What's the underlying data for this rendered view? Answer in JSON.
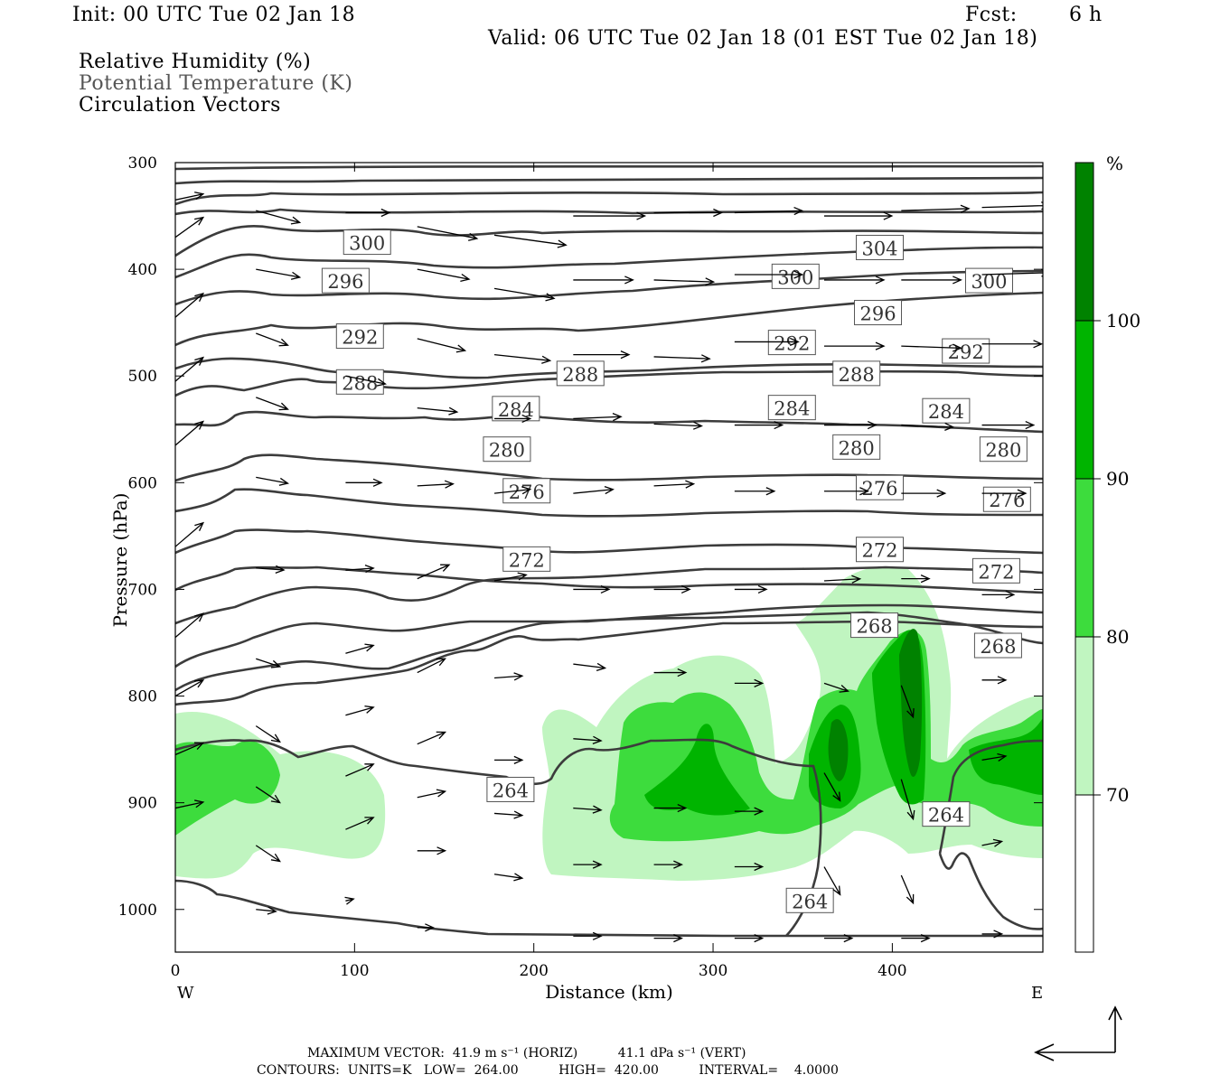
{
  "header": {
    "init": "Init: 00 UTC Tue 02 Jan 18",
    "fcst_label": "Fcst:",
    "fcst_value": "6 h",
    "valid": "Valid: 06 UTC Tue 02 Jan 18 (01 EST Tue 02 Jan 18)"
  },
  "legend": {
    "line1": "Relative Humidity (%)",
    "line2": "Potential Temperature (K)",
    "line3": "Circulation Vectors"
  },
  "chart_data": {
    "type": "contour",
    "xlabel": "Distance (km)",
    "ylabel": "Pressure (hPa)",
    "xlim": [
      0,
      484
    ],
    "ylim": [
      1040,
      300
    ],
    "x_ticks": [
      "0",
      "100",
      "200",
      "300",
      "400"
    ],
    "x_tick_values": [
      0,
      100,
      200,
      300,
      400
    ],
    "y_ticks": [
      "300",
      "400",
      "500",
      "600",
      "700",
      "800",
      "900",
      "1000"
    ],
    "y_tick_values": [
      300,
      400,
      500,
      600,
      700,
      800,
      900,
      1000
    ],
    "west_label": "W",
    "east_label": "E",
    "colorbar": {
      "unit": "%",
      "levels": [
        "70",
        "80",
        "90",
        "100"
      ],
      "colors": [
        "#ffffff",
        "#c0f5c0",
        "#3ddc3d",
        "#00b400",
        "#008200"
      ]
    },
    "theta_contours": [
      {
        "label": "264",
        "value": 264
      },
      {
        "label": "268",
        "value": 268
      },
      {
        "label": "272",
        "value": 272
      },
      {
        "label": "276",
        "value": 276
      },
      {
        "label": "280",
        "value": 280
      },
      {
        "label": "284",
        "value": 284
      },
      {
        "label": "288",
        "value": 288
      },
      {
        "label": "292",
        "value": 292
      },
      {
        "label": "296",
        "value": 296
      },
      {
        "label": "300",
        "value": 300
      },
      {
        "label": "304",
        "value": 304
      }
    ],
    "contour_labels": [
      {
        "text": "300",
        "x": 107,
        "y": 375
      },
      {
        "text": "304",
        "x": 393,
        "y": 380
      },
      {
        "text": "296",
        "x": 95,
        "y": 411
      },
      {
        "text": "300",
        "x": 346,
        "y": 407
      },
      {
        "text": "300",
        "x": 454,
        "y": 411
      },
      {
        "text": "296",
        "x": 392,
        "y": 441
      },
      {
        "text": "292",
        "x": 103,
        "y": 463
      },
      {
        "text": "292",
        "x": 344,
        "y": 469
      },
      {
        "text": "292",
        "x": 441,
        "y": 477
      },
      {
        "text": "288",
        "x": 103,
        "y": 506
      },
      {
        "text": "288",
        "x": 226,
        "y": 498
      },
      {
        "text": "288",
        "x": 380,
        "y": 498
      },
      {
        "text": "284",
        "x": 190,
        "y": 531
      },
      {
        "text": "284",
        "x": 344,
        "y": 530
      },
      {
        "text": "284",
        "x": 430,
        "y": 533
      },
      {
        "text": "280",
        "x": 185,
        "y": 569
      },
      {
        "text": "280",
        "x": 380,
        "y": 567
      },
      {
        "text": "280",
        "x": 462,
        "y": 569
      },
      {
        "text": "276",
        "x": 196,
        "y": 608
      },
      {
        "text": "276",
        "x": 393,
        "y": 605
      },
      {
        "text": "276",
        "x": 464,
        "y": 616
      },
      {
        "text": "272",
        "x": 196,
        "y": 672
      },
      {
        "text": "272",
        "x": 393,
        "y": 663
      },
      {
        "text": "272",
        "x": 458,
        "y": 683
      },
      {
        "text": "268",
        "x": 390,
        "y": 734
      },
      {
        "text": "268",
        "x": 459,
        "y": 753
      },
      {
        "text": "264",
        "x": 187,
        "y": 888
      },
      {
        "text": "264",
        "x": 430,
        "y": 911
      },
      {
        "text": "264",
        "x": 354,
        "y": 992
      }
    ],
    "circulation_vectors": [
      {
        "x": 0,
        "p": 335,
        "u": 14,
        "w": -3
      },
      {
        "x": 0,
        "p": 370,
        "u": 14,
        "w": -10
      },
      {
        "x": 0,
        "p": 445,
        "u": 14,
        "w": -12
      },
      {
        "x": 0,
        "p": 505,
        "u": 14,
        "w": -12
      },
      {
        "x": 0,
        "p": 565,
        "u": 14,
        "w": -12
      },
      {
        "x": 0,
        "p": 660,
        "u": 14,
        "w": -12
      },
      {
        "x": 0,
        "p": 745,
        "u": 14,
        "w": -12
      },
      {
        "x": 0,
        "p": 800,
        "u": 14,
        "w": -8
      },
      {
        "x": 0,
        "p": 855,
        "u": 14,
        "w": -6
      },
      {
        "x": 0,
        "p": 905,
        "u": 14,
        "w": -3
      },
      {
        "x": 45,
        "p": 345,
        "u": 22,
        "w": 6
      },
      {
        "x": 45,
        "p": 400,
        "u": 22,
        "w": 4
      },
      {
        "x": 45,
        "p": 460,
        "u": 16,
        "w": 6
      },
      {
        "x": 45,
        "p": 520,
        "u": 16,
        "w": 6
      },
      {
        "x": 45,
        "p": 595,
        "u": 16,
        "w": 3
      },
      {
        "x": 45,
        "p": 680,
        "u": 14,
        "w": 1
      },
      {
        "x": 45,
        "p": 765,
        "u": 12,
        "w": 4
      },
      {
        "x": 45,
        "p": 828,
        "u": 12,
        "w": 8
      },
      {
        "x": 45,
        "p": 885,
        "u": 12,
        "w": 8
      },
      {
        "x": 45,
        "p": 940,
        "u": 12,
        "w": 8
      },
      {
        "x": 45,
        "p": 1000,
        "u": 10,
        "w": 1
      },
      {
        "x": 95,
        "p": 347,
        "u": 22,
        "w": 0
      },
      {
        "x": 95,
        "p": 500,
        "u": 20,
        "w": 4
      },
      {
        "x": 95,
        "p": 600,
        "u": 18,
        "w": 0
      },
      {
        "x": 95,
        "p": 682,
        "u": 14,
        "w": -1
      },
      {
        "x": 95,
        "p": 760,
        "u": 14,
        "w": -4
      },
      {
        "x": 95,
        "p": 818,
        "u": 14,
        "w": -4
      },
      {
        "x": 95,
        "p": 875,
        "u": 14,
        "w": -6
      },
      {
        "x": 95,
        "p": 925,
        "u": 14,
        "w": -6
      },
      {
        "x": 95,
        "p": 992,
        "u": 4,
        "w": -1
      },
      {
        "x": 135,
        "p": 360,
        "u": 30,
        "w": 6
      },
      {
        "x": 135,
        "p": 400,
        "u": 26,
        "w": 5
      },
      {
        "x": 135,
        "p": 465,
        "u": 24,
        "w": 6
      },
      {
        "x": 135,
        "p": 530,
        "u": 20,
        "w": 2
      },
      {
        "x": 135,
        "p": 603,
        "u": 18,
        "w": -1
      },
      {
        "x": 135,
        "p": 690,
        "u": 16,
        "w": -7
      },
      {
        "x": 135,
        "p": 778,
        "u": 14,
        "w": -7
      },
      {
        "x": 135,
        "p": 845,
        "u": 14,
        "w": -6
      },
      {
        "x": 135,
        "p": 895,
        "u": 14,
        "w": -3
      },
      {
        "x": 135,
        "p": 945,
        "u": 14,
        "w": 0
      },
      {
        "x": 135,
        "p": 1017,
        "u": 8,
        "w": 0
      },
      {
        "x": 178,
        "p": 368,
        "u": 36,
        "w": 5
      },
      {
        "x": 178,
        "p": 418,
        "u": 30,
        "w": 5
      },
      {
        "x": 178,
        "p": 480,
        "u": 28,
        "w": 3
      },
      {
        "x": 178,
        "p": 540,
        "u": 18,
        "w": 0
      },
      {
        "x": 178,
        "p": 610,
        "u": 18,
        "w": -2
      },
      {
        "x": 178,
        "p": 692,
        "u": 16,
        "w": -3
      },
      {
        "x": 178,
        "p": 783,
        "u": 14,
        "w": -1
      },
      {
        "x": 178,
        "p": 860,
        "u": 14,
        "w": 0
      },
      {
        "x": 178,
        "p": 910,
        "u": 14,
        "w": 1
      },
      {
        "x": 178,
        "p": 967,
        "u": 14,
        "w": 2
      },
      {
        "x": 222,
        "p": 350,
        "u": 36,
        "w": 0
      },
      {
        "x": 222,
        "p": 410,
        "u": 30,
        "w": 0
      },
      {
        "x": 222,
        "p": 480,
        "u": 28,
        "w": 0
      },
      {
        "x": 222,
        "p": 540,
        "u": 24,
        "w": -1
      },
      {
        "x": 222,
        "p": 610,
        "u": 20,
        "w": -2
      },
      {
        "x": 222,
        "p": 700,
        "u": 18,
        "w": 0
      },
      {
        "x": 222,
        "p": 770,
        "u": 16,
        "w": 2
      },
      {
        "x": 222,
        "p": 840,
        "u": 14,
        "w": 1
      },
      {
        "x": 222,
        "p": 905,
        "u": 14,
        "w": 1
      },
      {
        "x": 222,
        "p": 958,
        "u": 14,
        "w": 0
      },
      {
        "x": 222,
        "p": 1025,
        "u": 14,
        "w": 0
      },
      {
        "x": 267,
        "p": 347,
        "u": 34,
        "w": 0
      },
      {
        "x": 267,
        "p": 410,
        "u": 30,
        "w": 1
      },
      {
        "x": 267,
        "p": 482,
        "u": 28,
        "w": 1
      },
      {
        "x": 267,
        "p": 545,
        "u": 24,
        "w": 1
      },
      {
        "x": 267,
        "p": 603,
        "u": 20,
        "w": -1
      },
      {
        "x": 267,
        "p": 700,
        "u": 18,
        "w": 0
      },
      {
        "x": 267,
        "p": 778,
        "u": 16,
        "w": 0
      },
      {
        "x": 267,
        "p": 905,
        "u": 16,
        "w": 0
      },
      {
        "x": 267,
        "p": 958,
        "u": 14,
        "w": 0
      },
      {
        "x": 267,
        "p": 1027,
        "u": 14,
        "w": 0
      },
      {
        "x": 312,
        "p": 347,
        "u": 34,
        "w": -1
      },
      {
        "x": 312,
        "p": 405,
        "u": 34,
        "w": 0
      },
      {
        "x": 312,
        "p": 468,
        "u": 32,
        "w": 0
      },
      {
        "x": 312,
        "p": 546,
        "u": 24,
        "w": 0
      },
      {
        "x": 312,
        "p": 608,
        "u": 20,
        "w": 0
      },
      {
        "x": 312,
        "p": 700,
        "u": 16,
        "w": 0
      },
      {
        "x": 312,
        "p": 788,
        "u": 14,
        "w": 0
      },
      {
        "x": 312,
        "p": 908,
        "u": 14,
        "w": 0
      },
      {
        "x": 312,
        "p": 960,
        "u": 14,
        "w": 0
      },
      {
        "x": 312,
        "p": 1027,
        "u": 14,
        "w": 0
      },
      {
        "x": 362,
        "p": 350,
        "u": 34,
        "w": 0
      },
      {
        "x": 362,
        "p": 410,
        "u": 30,
        "w": 0
      },
      {
        "x": 362,
        "p": 472,
        "u": 30,
        "w": 0
      },
      {
        "x": 362,
        "p": 546,
        "u": 26,
        "w": 0
      },
      {
        "x": 362,
        "p": 608,
        "u": 22,
        "w": 0
      },
      {
        "x": 362,
        "p": 692,
        "u": 18,
        "w": -1
      },
      {
        "x": 362,
        "p": 788,
        "u": 12,
        "w": 4
      },
      {
        "x": 362,
        "p": 872,
        "u": 8,
        "w": 14
      },
      {
        "x": 362,
        "p": 960,
        "u": 8,
        "w": 14
      },
      {
        "x": 362,
        "p": 1027,
        "u": 14,
        "w": 0
      },
      {
        "x": 405,
        "p": 345,
        "u": 34,
        "w": -1
      },
      {
        "x": 405,
        "p": 410,
        "u": 30,
        "w": 0
      },
      {
        "x": 405,
        "p": 472,
        "u": 30,
        "w": 1
      },
      {
        "x": 405,
        "p": 546,
        "u": 26,
        "w": 1
      },
      {
        "x": 405,
        "p": 610,
        "u": 22,
        "w": 0
      },
      {
        "x": 405,
        "p": 690,
        "u": 14,
        "w": 0
      },
      {
        "x": 405,
        "p": 790,
        "u": 6,
        "w": 16
      },
      {
        "x": 405,
        "p": 878,
        "u": 6,
        "w": 20
      },
      {
        "x": 405,
        "p": 968,
        "u": 6,
        "w": 14
      },
      {
        "x": 405,
        "p": 1027,
        "u": 14,
        "w": 0
      },
      {
        "x": 450,
        "p": 342,
        "u": 34,
        "w": -1
      },
      {
        "x": 450,
        "p": 405,
        "u": 34,
        "w": -1
      },
      {
        "x": 450,
        "p": 470,
        "u": 30,
        "w": 0
      },
      {
        "x": 450,
        "p": 546,
        "u": 26,
        "w": 0
      },
      {
        "x": 450,
        "p": 610,
        "u": 22,
        "w": 0
      },
      {
        "x": 450,
        "p": 705,
        "u": 16,
        "w": 0
      },
      {
        "x": 450,
        "p": 785,
        "u": 12,
        "w": 0
      },
      {
        "x": 450,
        "p": 860,
        "u": 12,
        "w": -2
      },
      {
        "x": 450,
        "p": 940,
        "u": 10,
        "w": -2
      },
      {
        "x": 450,
        "p": 1023,
        "u": 10,
        "w": 0
      }
    ]
  },
  "footer": {
    "line1": "MAXIMUM VECTOR:  41.9 m s⁻¹ (HORIZ)          41.1 dPa s⁻¹ (VERT)",
    "line2": "CONTOURS:  UNITS=K   LOW=  264.00          HIGH=  420.00          INTERVAL=    4.0000"
  },
  "colors": {
    "rh_70": "#c0f5c0",
    "rh_80": "#3ddc3d",
    "rh_90": "#00b400",
    "rh_100": "#008200",
    "contour": "#3c3c3c",
    "vector": "#000000"
  }
}
